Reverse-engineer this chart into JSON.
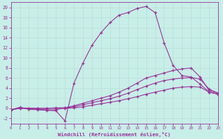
{
  "xlabel": "Windchill (Refroidissement éolien,°C)",
  "xlim": [
    0,
    23
  ],
  "ylim": [
    -3,
    21
  ],
  "yticks": [
    -2,
    0,
    2,
    4,
    6,
    8,
    10,
    12,
    14,
    16,
    18,
    20
  ],
  "xticks": [
    0,
    1,
    2,
    3,
    4,
    5,
    6,
    7,
    8,
    9,
    10,
    11,
    12,
    13,
    14,
    15,
    16,
    17,
    18,
    19,
    20,
    21,
    22,
    23
  ],
  "bg_color": "#c8eee8",
  "line_color": "#993399",
  "grid_color": "#b8ddd5",
  "line1_x": [
    0,
    1,
    2,
    3,
    4,
    5,
    6,
    7,
    8,
    9,
    10,
    11,
    12,
    13,
    14,
    15,
    16,
    17,
    18,
    19,
    20,
    21,
    22,
    23
  ],
  "line1_y": [
    -0.3,
    0.2,
    -0.2,
    -0.3,
    -0.4,
    -0.5,
    -2.5,
    5.0,
    9.0,
    12.5,
    15.0,
    17.0,
    18.5,
    19.0,
    19.8,
    20.2,
    19.0,
    13.0,
    8.5,
    6.5,
    6.2,
    4.8,
    3.2,
    2.8
  ],
  "line2_x": [
    0,
    1,
    2,
    3,
    4,
    5,
    6,
    7,
    8,
    9,
    10,
    11,
    12,
    13,
    14,
    15,
    16,
    17,
    18,
    19,
    20,
    21,
    22,
    23
  ],
  "line2_y": [
    -0.3,
    0.0,
    -0.1,
    -0.2,
    -0.3,
    -0.3,
    0.1,
    0.5,
    1.0,
    1.5,
    2.0,
    2.5,
    3.2,
    4.0,
    5.0,
    6.0,
    6.5,
    7.0,
    7.5,
    7.8,
    8.0,
    6.2,
    3.5,
    3.0
  ],
  "line3_x": [
    0,
    1,
    2,
    3,
    4,
    5,
    6,
    7,
    8,
    9,
    10,
    11,
    12,
    13,
    14,
    15,
    16,
    17,
    18,
    19,
    20,
    21,
    22,
    23
  ],
  "line3_y": [
    -0.3,
    0.1,
    0.0,
    0.0,
    0.0,
    0.1,
    0.1,
    0.3,
    0.7,
    1.1,
    1.5,
    1.9,
    2.4,
    3.0,
    3.7,
    4.4,
    5.0,
    5.5,
    5.8,
    6.0,
    6.1,
    5.8,
    3.8,
    3.0
  ],
  "line4_x": [
    0,
    1,
    2,
    3,
    4,
    5,
    6,
    7,
    8,
    9,
    10,
    11,
    12,
    13,
    14,
    15,
    16,
    17,
    18,
    19,
    20,
    21,
    22,
    23
  ],
  "line4_y": [
    -0.3,
    0.0,
    0.0,
    0.0,
    0.0,
    0.0,
    0.0,
    0.1,
    0.3,
    0.6,
    0.9,
    1.2,
    1.5,
    1.9,
    2.3,
    2.8,
    3.2,
    3.6,
    4.0,
    4.2,
    4.3,
    4.2,
    3.2,
    2.8
  ]
}
